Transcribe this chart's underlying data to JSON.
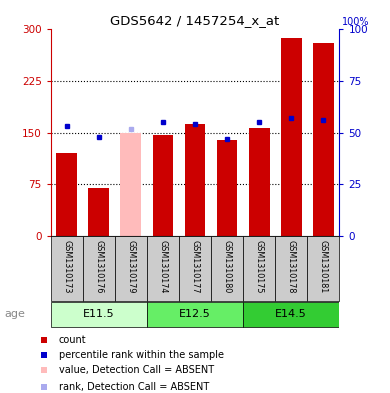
{
  "title": "GDS5642 / 1457254_x_at",
  "samples": [
    "GSM1310173",
    "GSM1310176",
    "GSM1310179",
    "GSM1310174",
    "GSM1310177",
    "GSM1310180",
    "GSM1310175",
    "GSM1310178",
    "GSM1310181"
  ],
  "count_values": [
    120,
    70,
    150,
    147,
    162,
    140,
    157,
    287,
    280
  ],
  "rank_values": [
    53,
    48,
    52,
    55,
    54,
    47,
    55,
    57,
    56
  ],
  "absent": [
    false,
    false,
    true,
    false,
    false,
    false,
    false,
    false,
    false
  ],
  "ylim_left": [
    0,
    300
  ],
  "ylim_right": [
    0,
    100
  ],
  "yticks_left": [
    0,
    75,
    150,
    225,
    300
  ],
  "yticks_right": [
    0,
    25,
    50,
    75,
    100
  ],
  "age_groups": [
    {
      "label": "E11.5",
      "indices": [
        0,
        1,
        2
      ],
      "color": "#ccffcc"
    },
    {
      "label": "E12.5",
      "indices": [
        3,
        4,
        5
      ],
      "color": "#66ee66"
    },
    {
      "label": "E14.5",
      "indices": [
        6,
        7,
        8
      ],
      "color": "#33cc33"
    }
  ],
  "bar_color_normal": "#cc0000",
  "bar_color_absent": "#ffbbbb",
  "rank_color_normal": "#0000cc",
  "rank_color_absent": "#aaaaee",
  "left_axis_color": "#cc0000",
  "right_axis_color": "#0000cc",
  "bar_width": 0.65
}
